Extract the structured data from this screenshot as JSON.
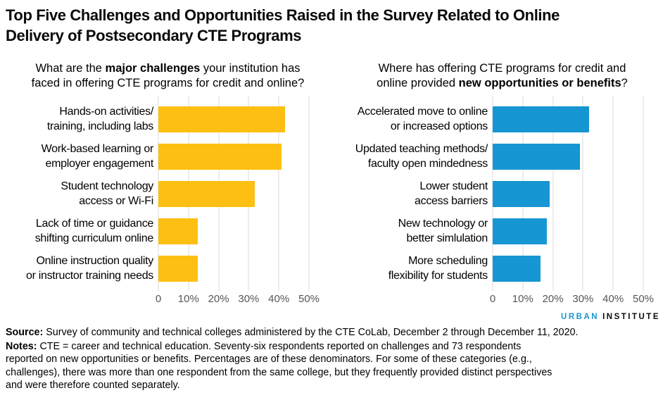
{
  "title": "Top Five Challenges and Opportunities Raised in the Survey Related to Online\nDelivery of Postsecondary CTE Programs",
  "colors": {
    "challenges_bar": "#fdbf11",
    "opportunities_bar": "#1696d2",
    "gridline": "#dbdbdb",
    "axis_text": "#55565a",
    "logo_urban": "#1696d2",
    "logo_institute": "#0a0a0a"
  },
  "chart_data": [
    {
      "type": "bar",
      "orientation": "horizontal",
      "title_parts": [
        {
          "text": "What are the ",
          "bold": false
        },
        {
          "text": "major challenges",
          "bold": true
        },
        {
          "text": " your institution has\nfaced in offering CTE programs for credit and online?",
          "bold": false
        }
      ],
      "categories": [
        "Hands-on activities/\ntraining, including labs",
        "Work-based learning or\nemployer engagement",
        "Student technology\naccess or Wi-Fi",
        "Lack of time or guidance\nshifting curriculum online",
        "Online instruction quality\nor instructor training needs"
      ],
      "values": [
        42,
        41,
        32,
        13,
        13
      ],
      "unit": "%",
      "xlim": [
        0,
        50
      ],
      "xticks": [
        "0",
        "10%",
        "20%",
        "30%",
        "40%",
        "50%"
      ],
      "bar_color": "#fdbf11",
      "grid": true,
      "legend": false
    },
    {
      "type": "bar",
      "orientation": "horizontal",
      "title_parts": [
        {
          "text": "Where has offering CTE programs for credit and\nonline provided ",
          "bold": false
        },
        {
          "text": "new opportunities or benefits",
          "bold": true
        },
        {
          "text": "?",
          "bold": false
        }
      ],
      "categories": [
        "Accelerated move to online\nor increased options",
        "Updated teaching methods/\nfaculty open mindedness",
        "Lower student\naccess barriers",
        "New technology or\nbetter simlulation",
        "More scheduling\nflexibility for students"
      ],
      "values": [
        32,
        29,
        19,
        18,
        16
      ],
      "unit": "%",
      "xlim": [
        0,
        50
      ],
      "xticks": [
        "0",
        "10%",
        "20%",
        "30%",
        "40%",
        "50%"
      ],
      "bar_color": "#1696d2",
      "grid": true,
      "legend": false
    }
  ],
  "logo": {
    "part1": "URBAN",
    "part2": "INSTITUTE"
  },
  "footer": {
    "source_label": "Source:",
    "source_text": "Survey of community and technical colleges administered by the CTE CoLab, December 2 through December 11, 2020.",
    "notes_label": "Notes:",
    "notes_text": "CTE = career and technical education. Seventy-six respondents reported on challenges and 73 respondents\nreported on new opportunities or benefits. Percentages are of these denominators. For some of these categories (e.g.,\nchallenges), there was more than one respondent from the same college, but they frequently provided distinct perspectives\nand were therefore counted separately."
  }
}
